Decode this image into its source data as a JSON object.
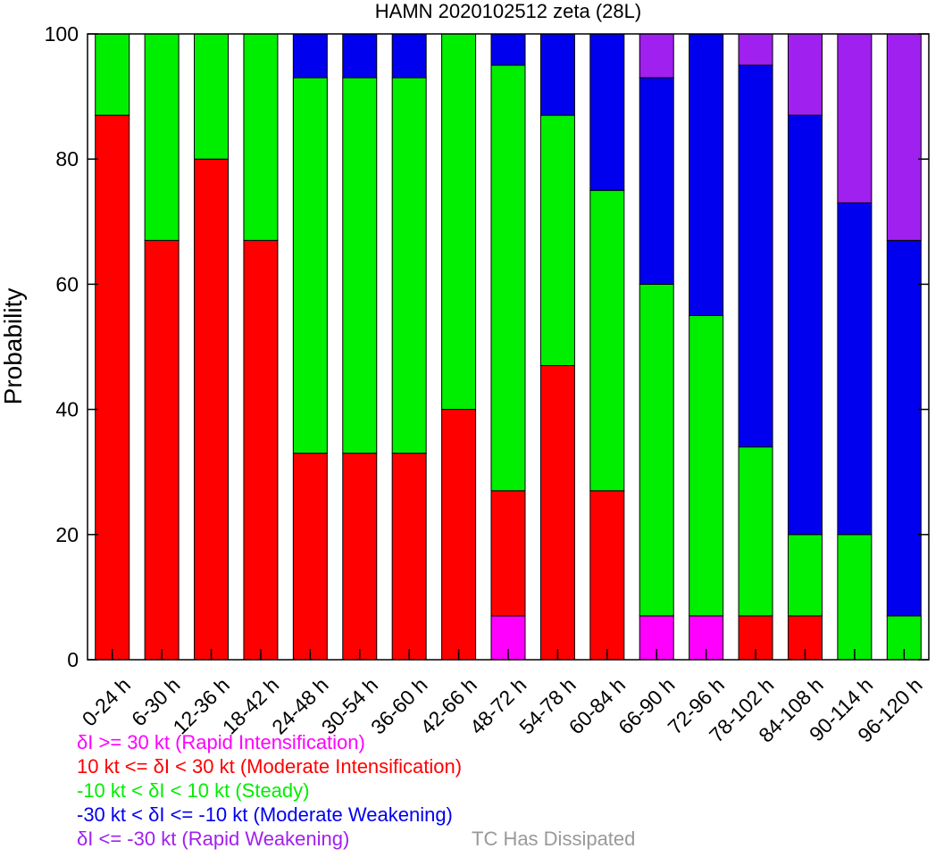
{
  "chart_data": {
    "type": "bar",
    "stacked": true,
    "title": "HAMN 2020102512 zeta (28L)",
    "ylabel": "Probability",
    "xlabel": "",
    "ylim": [
      0,
      100
    ],
    "yticks": [
      0,
      20,
      40,
      60,
      80,
      100
    ],
    "grid": false,
    "categories": [
      "0-24 h",
      "6-30 h",
      "12-36 h",
      "18-42 h",
      "24-48 h",
      "30-54 h",
      "36-60 h",
      "42-66 h",
      "48-72 h",
      "54-78 h",
      "60-84 h",
      "66-90 h",
      "72-96 h",
      "78-102 h",
      "84-108 h",
      "90-114 h",
      "96-120 h"
    ],
    "series": [
      {
        "name": "δI >= 30 kt (Rapid Intensification)",
        "color": "#ff00ff",
        "values": [
          0,
          0,
          0,
          0,
          0,
          0,
          0,
          0,
          7,
          0,
          0,
          7,
          7,
          0,
          0,
          0,
          0
        ]
      },
      {
        "name": "10 kt <= δI < 30 kt (Moderate Intensification)",
        "color": "#ff0000",
        "values": [
          87,
          67,
          80,
          67,
          33,
          33,
          33,
          40,
          20,
          47,
          27,
          0,
          0,
          7,
          7,
          0,
          0
        ]
      },
      {
        "name": "-10 kt < δI < 10 kt (Steady)",
        "color": "#00ee00",
        "values": [
          13,
          33,
          20,
          33,
          60,
          60,
          60,
          60,
          68,
          40,
          48,
          53,
          48,
          27,
          13,
          20,
          7
        ]
      },
      {
        "name": "-30 kt < δI <= -10 kt (Moderate Weakening)",
        "color": "#0000ee",
        "values": [
          0,
          0,
          0,
          0,
          7,
          7,
          7,
          0,
          5,
          13,
          25,
          33,
          45,
          61,
          67,
          53,
          60
        ]
      },
      {
        "name": "δI <= -30 kt (Rapid Weakening)",
        "color": "#a020f0",
        "values": [
          0,
          0,
          0,
          0,
          0,
          0,
          0,
          0,
          0,
          0,
          0,
          7,
          0,
          5,
          13,
          27,
          33
        ]
      }
    ],
    "extra_legend": {
      "name": "TC Has Dissipated",
      "color": "#999999"
    }
  }
}
